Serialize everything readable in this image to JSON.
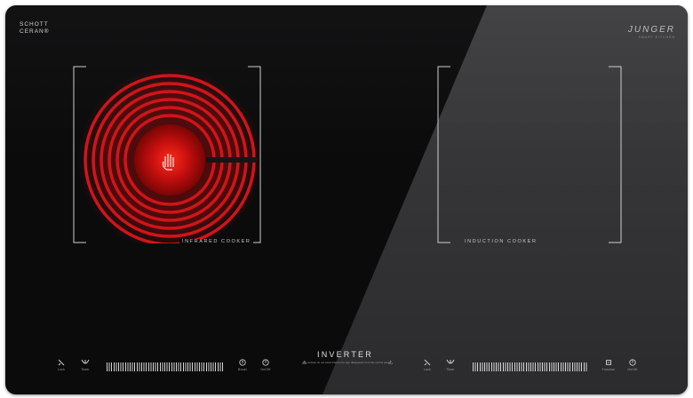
{
  "brand": {
    "left_logo": "SCHOTT\nCERAN®",
    "right_logo": "JUNGER",
    "right_logo_sub": "SMART KITCHEN"
  },
  "zones": [
    {
      "label": "INFRARED COOKER",
      "state": "heating",
      "glow_color": "#d31414"
    },
    {
      "label": "INDUCTION COOKER",
      "state": "off"
    }
  ],
  "center": {
    "title": "INVERTER",
    "warning": "Hot surface do not touch before the sign disappears from the control panel"
  },
  "controls": {
    "left": {
      "icons": [
        {
          "icon": "lock-icon",
          "caption": "Lock"
        },
        {
          "icon": "timer-icon",
          "caption": "Timer"
        },
        {
          "icon": "boost-icon",
          "caption": "Boost"
        },
        {
          "icon": "power-icon",
          "caption": "On/Off"
        }
      ]
    },
    "right": {
      "icons": [
        {
          "icon": "lock-icon",
          "caption": "Lock"
        },
        {
          "icon": "timer-icon",
          "caption": "Timer"
        },
        {
          "icon": "function-icon",
          "caption": "Function"
        },
        {
          "icon": "power-icon",
          "caption": "On/Off"
        }
      ]
    }
  },
  "colors": {
    "glass_dark": "#0b0b0c",
    "glass_light": "#363638",
    "heating_red": "#d31414",
    "marking_white": "#cfcfcf"
  }
}
